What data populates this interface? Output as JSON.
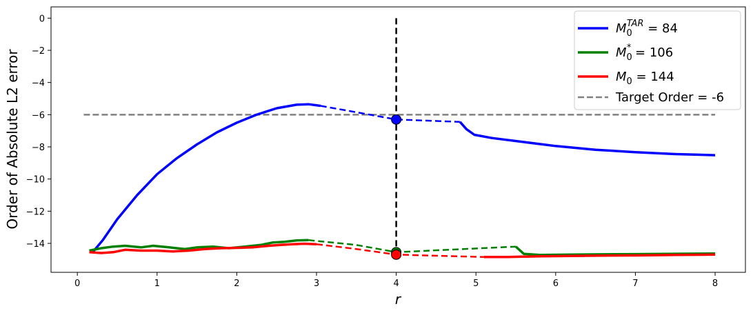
{
  "chart_data": {
    "type": "line",
    "xlabel": "r",
    "ylabel": "Order of Absolute L2 error",
    "xlim": [
      -0.33,
      8.38
    ],
    "ylim": [
      -15.8,
      0.7
    ],
    "xticks": [
      0,
      1,
      2,
      3,
      4,
      5,
      6,
      7,
      8
    ],
    "yticks": [
      0,
      -2,
      -4,
      -6,
      -8,
      -10,
      -12,
      -14
    ],
    "grid": false,
    "legend_position": "top-right",
    "series": [
      {
        "name": "M0^TAR = 84",
        "legend_main": "M",
        "legend_sub": "0",
        "legend_sup": "TAR",
        "legend_value": " = 84",
        "color": "#0000ff",
        "segments": [
          {
            "style": "solid",
            "points": [
              [
                0.2,
                -14.5
              ],
              [
                0.32,
                -13.8
              ],
              [
                0.5,
                -12.5
              ],
              [
                0.75,
                -11.0
              ],
              [
                1.0,
                -9.7
              ],
              [
                1.25,
                -8.7
              ],
              [
                1.5,
                -7.85
              ],
              [
                1.75,
                -7.1
              ],
              [
                2.0,
                -6.5
              ],
              [
                2.25,
                -6.0
              ],
              [
                2.5,
                -5.6
              ],
              [
                2.75,
                -5.38
              ],
              [
                2.9,
                -5.35
              ],
              [
                3.05,
                -5.45
              ]
            ]
          },
          {
            "style": "dashed",
            "points": [
              [
                3.05,
                -5.45
              ],
              [
                3.5,
                -5.85
              ],
              [
                4.0,
                -6.3
              ],
              [
                4.8,
                -6.45
              ]
            ]
          },
          {
            "style": "solid",
            "points": [
              [
                4.8,
                -6.45
              ],
              [
                4.88,
                -6.9
              ],
              [
                4.98,
                -7.25
              ],
              [
                5.2,
                -7.45
              ],
              [
                5.6,
                -7.7
              ],
              [
                6.0,
                -7.95
              ],
              [
                6.5,
                -8.18
              ],
              [
                7.0,
                -8.33
              ],
              [
                7.5,
                -8.45
              ],
              [
                8.0,
                -8.52
              ]
            ]
          }
        ],
        "markers": [
          [
            4.0,
            -6.3
          ]
        ]
      },
      {
        "name": "M0* = 106",
        "legend_main": "M",
        "legend_sub": "0",
        "legend_sup": "*",
        "legend_value": " = 106",
        "color": "#008000",
        "segments": [
          {
            "style": "solid",
            "points": [
              [
                0.15,
                -14.45
              ],
              [
                0.3,
                -14.3
              ],
              [
                0.45,
                -14.2
              ],
              [
                0.6,
                -14.15
              ],
              [
                0.8,
                -14.25
              ],
              [
                0.95,
                -14.15
              ],
              [
                1.15,
                -14.25
              ],
              [
                1.35,
                -14.35
              ],
              [
                1.5,
                -14.25
              ],
              [
                1.7,
                -14.2
              ],
              [
                1.9,
                -14.3
              ],
              [
                2.1,
                -14.2
              ],
              [
                2.3,
                -14.1
              ],
              [
                2.45,
                -13.95
              ],
              [
                2.6,
                -13.9
              ],
              [
                2.75,
                -13.82
              ],
              [
                2.9,
                -13.8
              ]
            ]
          },
          {
            "style": "dashed",
            "points": [
              [
                2.9,
                -13.8
              ],
              [
                3.5,
                -14.1
              ],
              [
                4.0,
                -14.55
              ],
              [
                5.5,
                -14.2
              ]
            ]
          },
          {
            "style": "solid",
            "points": [
              [
                5.5,
                -14.2
              ],
              [
                5.6,
                -14.65
              ],
              [
                5.8,
                -14.72
              ],
              [
                6.2,
                -14.7
              ],
              [
                6.6,
                -14.68
              ],
              [
                7.0,
                -14.67
              ],
              [
                7.4,
                -14.65
              ],
              [
                7.8,
                -14.64
              ],
              [
                8.0,
                -14.63
              ]
            ]
          }
        ],
        "markers": [
          [
            4.0,
            -14.55
          ]
        ]
      },
      {
        "name": "M0 = 144",
        "legend_main": "M",
        "legend_sub": "0",
        "legend_sup": "",
        "legend_value": " = 144",
        "color": "#ff0000",
        "segments": [
          {
            "style": "solid",
            "points": [
              [
                0.15,
                -14.55
              ],
              [
                0.3,
                -14.6
              ],
              [
                0.45,
                -14.55
              ],
              [
                0.6,
                -14.4
              ],
              [
                0.8,
                -14.45
              ],
              [
                1.0,
                -14.45
              ],
              [
                1.2,
                -14.5
              ],
              [
                1.4,
                -14.45
              ],
              [
                1.6,
                -14.35
              ],
              [
                1.8,
                -14.3
              ],
              [
                2.0,
                -14.28
              ],
              [
                2.2,
                -14.25
              ],
              [
                2.4,
                -14.15
              ],
              [
                2.55,
                -14.1
              ],
              [
                2.7,
                -14.05
              ],
              [
                2.85,
                -14.02
              ],
              [
                3.0,
                -14.05
              ]
            ]
          },
          {
            "style": "dashed",
            "points": [
              [
                3.0,
                -14.05
              ],
              [
                3.5,
                -14.35
              ],
              [
                4.0,
                -14.7
              ],
              [
                5.1,
                -14.85
              ]
            ]
          },
          {
            "style": "solid",
            "points": [
              [
                5.1,
                -14.85
              ],
              [
                5.4,
                -14.85
              ],
              [
                5.8,
                -14.8
              ],
              [
                6.2,
                -14.78
              ],
              [
                6.6,
                -14.76
              ],
              [
                7.0,
                -14.75
              ],
              [
                7.5,
                -14.72
              ],
              [
                8.0,
                -14.7
              ]
            ]
          }
        ],
        "markers": [
          [
            4.0,
            -14.7
          ]
        ]
      }
    ],
    "target": {
      "name": "Target Order = -6",
      "legend_label": "Target Order = -6",
      "color": "#808080",
      "y": -6,
      "x_range": [
        0.08,
        8.0
      ]
    },
    "vline": {
      "x": 4.0,
      "y_range": [
        -14.7,
        0.0
      ],
      "color": "#000000"
    }
  }
}
